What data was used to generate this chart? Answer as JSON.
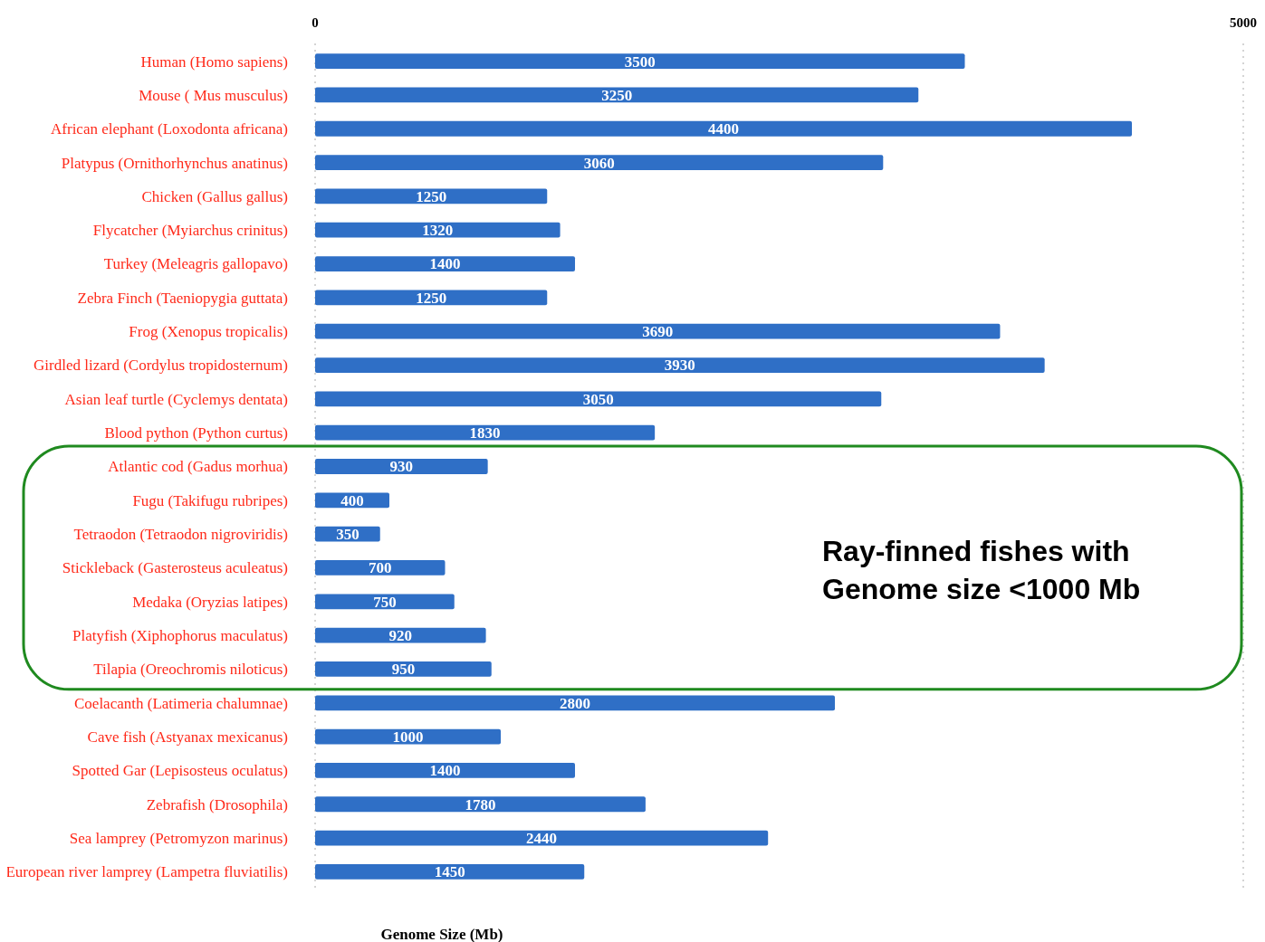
{
  "chart_data": {
    "type": "bar",
    "orientation": "horizontal",
    "xlabel": "Genome Size (Mb)",
    "categories": [
      "Human (Homo sapiens)",
      "Mouse ( Mus musculus)",
      "African elephant (Loxodonta africana)",
      "Platypus (Ornithorhynchus anatinus)",
      "Chicken (Gallus gallus)",
      "Flycatcher  (Myiarchus crinitus)",
      "Turkey (Meleagris gallopavo)",
      "Zebra Finch (Taeniopygia guttata)",
      "Frog (Xenopus tropicalis)",
      "Girdled lizard (Cordylus tropidosternum)",
      "Asian leaf turtle (Cyclemys dentata)",
      "Blood python (Python curtus)",
      "Atlantic cod (Gadus morhua)",
      "Fugu (Takifugu rubripes)",
      "Tetraodon (Tetraodon nigroviridis)",
      "Stickleback (Gasterosteus aculeatus)",
      "Medaka (Oryzias latipes)",
      "Platyfish  (Xiphophorus maculatus)",
      "Tilapia  (Oreochromis niloticus)",
      "Coelacanth (Latimeria chalumnae)",
      "Cave fish  (Astyanax mexicanus)",
      "Spotted Gar (Lepisosteus oculatus)",
      "Zebrafish (Drosophila)",
      "Sea lamprey (Petromyzon marinus)",
      "European river lamprey (Lampetra fluviatilis)"
    ],
    "values": [
      3500,
      3250,
      4400,
      3060,
      1250,
      1320,
      1400,
      1250,
      3690,
      3930,
      3050,
      1830,
      930,
      400,
      350,
      700,
      750,
      920,
      950,
      2800,
      1000,
      1400,
      1780,
      2440,
      1450
    ],
    "color": "#2f6fc6",
    "xlim": [
      0,
      5000
    ],
    "xticks": [
      0,
      5000
    ],
    "grid": "x",
    "data_labels": true,
    "annotations": [
      "Ray-finned fishes with Genome size <1000 Mb"
    ]
  }
}
